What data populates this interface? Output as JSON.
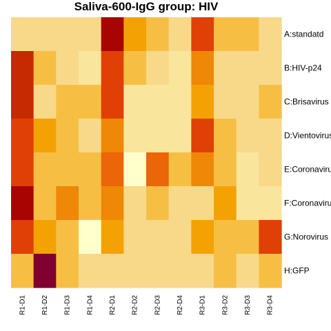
{
  "chart_data": {
    "type": "heatmap",
    "title": "Saliva-600-IgG group: HIV",
    "columns": [
      "R1-D1",
      "R1-D2",
      "R1-D3",
      "R1-D4",
      "R2-D1",
      "R2-D2",
      "R2-D3",
      "R2-D4",
      "R3-D1",
      "R3-D2",
      "R3-D3",
      "R3-D4"
    ],
    "rows": [
      "A:standatd",
      "B:HIV-p24",
      "C:Brisavirus",
      "D:Vientovirus",
      "E:Coronavirus",
      "F:Coronavirus",
      "G:Norovirus",
      "H:GFP"
    ],
    "color_scale": [
      "#FFFFCC",
      "#FAE59C",
      "#F8D98A",
      "#F6BF44",
      "#F4A203",
      "#EF8707",
      "#EB6509",
      "#E04006",
      "#C52A02",
      "#A80402",
      "#800030"
    ],
    "values": [
      [
        2,
        2,
        2,
        2,
        9,
        4,
        3,
        2,
        7,
        3,
        3,
        2
      ],
      [
        8,
        3,
        2,
        1,
        7,
        3,
        2,
        1,
        5,
        2,
        2,
        2
      ],
      [
        8,
        2,
        3,
        3,
        7,
        1,
        1,
        1,
        4,
        2,
        2,
        3
      ],
      [
        7,
        4,
        3,
        2,
        5,
        1,
        1,
        1,
        7,
        3,
        2,
        2
      ],
      [
        7,
        3,
        3,
        3,
        6,
        0,
        6,
        3,
        5,
        3,
        1,
        2
      ],
      [
        9,
        3,
        5,
        3,
        5,
        2,
        3,
        2,
        2,
        4,
        1,
        1
      ],
      [
        7,
        4,
        3,
        0,
        4,
        2,
        2,
        2,
        4,
        3,
        3,
        7
      ],
      [
        3,
        10,
        3,
        2,
        2,
        2,
        2,
        2,
        2,
        3,
        2,
        3
      ]
    ],
    "legend": "none"
  }
}
